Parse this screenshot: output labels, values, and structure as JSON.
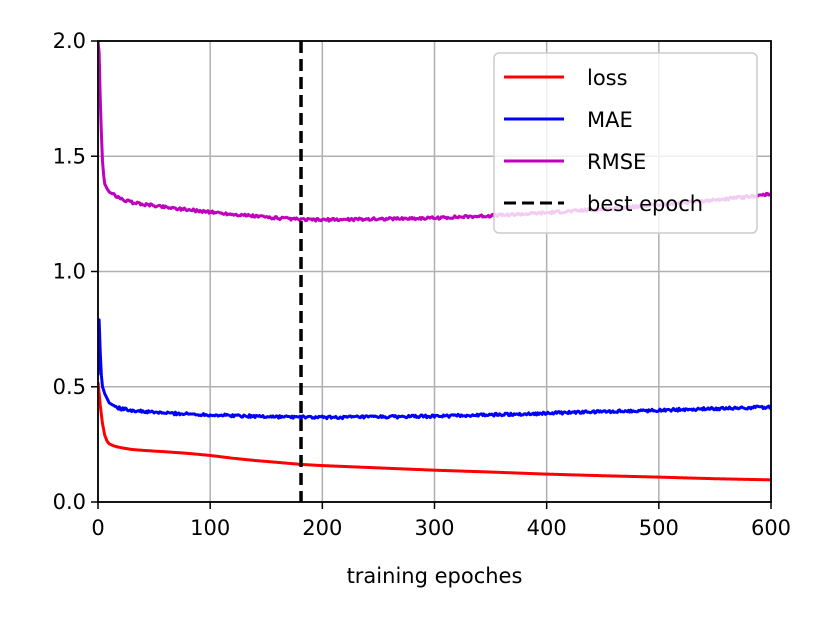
{
  "chart_data": {
    "type": "line",
    "title": "",
    "xlabel": "training epoches",
    "ylabel": "",
    "xlim": [
      0,
      600
    ],
    "ylim": [
      0.0,
      2.0
    ],
    "xticks": [
      "0",
      "100",
      "200",
      "300",
      "400",
      "500",
      "600"
    ],
    "yticks": [
      "0.0",
      "0.5",
      "1.0",
      "1.5",
      "2.0"
    ],
    "grid": true,
    "legend_position": "top-right",
    "vline": {
      "name": "best epoch",
      "x": 181,
      "color": "#000000",
      "style": "dashed"
    },
    "series": [
      {
        "name": "loss",
        "color": "#ff0000",
        "x": [
          0,
          2,
          4,
          6,
          8,
          10,
          15,
          20,
          30,
          40,
          60,
          80,
          100,
          120,
          140,
          160,
          181,
          200,
          250,
          300,
          350,
          400,
          450,
          500,
          550,
          600
        ],
        "values": [
          0.52,
          0.42,
          0.34,
          0.29,
          0.265,
          0.252,
          0.242,
          0.236,
          0.228,
          0.224,
          0.218,
          0.211,
          0.202,
          0.19,
          0.18,
          0.172,
          0.163,
          0.158,
          0.148,
          0.138,
          0.13,
          0.121,
          0.114,
          0.108,
          0.101,
          0.096
        ]
      },
      {
        "name": "MAE",
        "color": "#0000ff",
        "x": [
          0,
          1,
          2,
          3,
          4,
          6,
          8,
          10,
          15,
          20,
          30,
          40,
          60,
          80,
          100,
          120,
          140,
          160,
          181,
          200,
          250,
          300,
          350,
          400,
          450,
          500,
          550,
          600
        ],
        "values": [
          0.55,
          0.79,
          0.65,
          0.55,
          0.5,
          0.47,
          0.45,
          0.43,
          0.415,
          0.405,
          0.398,
          0.392,
          0.386,
          0.382,
          0.378,
          0.375,
          0.372,
          0.37,
          0.368,
          0.367,
          0.369,
          0.372,
          0.378,
          0.385,
          0.392,
          0.398,
          0.405,
          0.412
        ]
      },
      {
        "name": "RMSE",
        "color": "#bf00bf",
        "x": [
          0,
          1,
          2,
          3,
          4,
          5,
          6,
          8,
          10,
          15,
          20,
          30,
          40,
          60,
          80,
          100,
          120,
          140,
          160,
          181,
          200,
          250,
          300,
          350,
          400,
          450,
          500,
          550,
          600
        ],
        "values": [
          2.0,
          1.95,
          1.75,
          1.6,
          1.48,
          1.42,
          1.38,
          1.36,
          1.345,
          1.33,
          1.315,
          1.3,
          1.292,
          1.28,
          1.268,
          1.258,
          1.248,
          1.24,
          1.232,
          1.225,
          1.224,
          1.228,
          1.232,
          1.242,
          1.255,
          1.27,
          1.29,
          1.31,
          1.335
        ]
      }
    ]
  }
}
